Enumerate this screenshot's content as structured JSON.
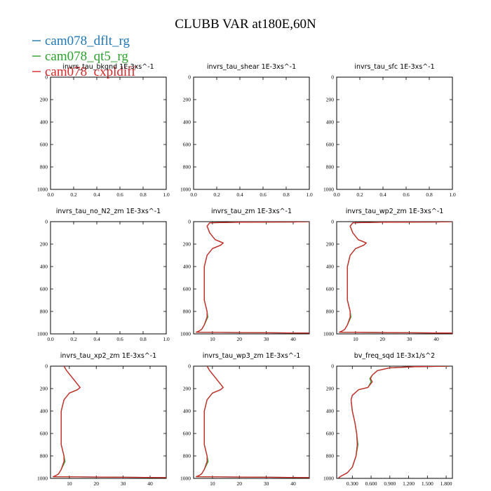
{
  "figure": {
    "title": "CLUBB VAR at180E,60N",
    "legend": [
      {
        "label": "cam078_dflt_rg",
        "color": "#1f77b4"
      },
      {
        "label": "cam078_qt5_rg",
        "color": "#2ca02c"
      },
      {
        "label": "cam078_cxpldiff",
        "color": "#d62728"
      }
    ]
  },
  "chart_data": [
    {
      "type": "line",
      "title": "invrs_tau_bkgnd",
      "units": "1E-3xs^-1",
      "xticks": [
        "0.0",
        "0.2",
        "0.4",
        "0.6",
        "0.8",
        "1.0"
      ],
      "xlim": [
        0,
        1
      ],
      "yticks": [
        "0",
        "200",
        "400",
        "600",
        "800",
        "1000"
      ],
      "ylim": [
        0,
        1000
      ],
      "y_inverted": true,
      "series": []
    },
    {
      "type": "line",
      "title": "invrs_tau_shear",
      "units": "1E-3xs^-1",
      "xticks": [
        "0.0",
        "0.2",
        "0.4",
        "0.6",
        "0.8",
        "1.0"
      ],
      "xlim": [
        0,
        1
      ],
      "yticks": [
        "0",
        "200",
        "400",
        "600",
        "800",
        "1000"
      ],
      "ylim": [
        0,
        1000
      ],
      "y_inverted": true,
      "series": []
    },
    {
      "type": "line",
      "title": "invrs_tau_sfc",
      "units": "1E-3xs^-1",
      "xticks": [
        "0.0",
        "0.2",
        "0.4",
        "0.6",
        "0.8",
        "1.0"
      ],
      "xlim": [
        0,
        1
      ],
      "yticks": [
        "0",
        "200",
        "400",
        "600",
        "800",
        "1000"
      ],
      "ylim": [
        0,
        1000
      ],
      "y_inverted": true,
      "series": []
    },
    {
      "type": "line",
      "title": "invrs_tau_no_N2_zm",
      "units": "1E-3xs^-1",
      "xticks": [
        "0.0",
        "0.2",
        "0.4",
        "0.6",
        "0.8",
        "1.0"
      ],
      "xlim": [
        0,
        1
      ],
      "yticks": [
        "0",
        "200",
        "400",
        "600",
        "800",
        "1000"
      ],
      "ylim": [
        0,
        1000
      ],
      "y_inverted": true,
      "series": []
    },
    {
      "type": "line",
      "title": "invrs_tau_zm",
      "units": "1E-3xs^-1",
      "xticks": [
        "10",
        "20",
        "30",
        "40"
      ],
      "xticks_values": [
        10,
        20,
        30,
        40
      ],
      "xlim": [
        3,
        46
      ],
      "yticks": [
        "0",
        "200",
        "400",
        "600",
        "800",
        "1000"
      ],
      "ylim": [
        0,
        1000
      ],
      "y_inverted": true,
      "series": [
        {
          "color": "#1f77b4",
          "x": [
            46,
            40,
            20,
            9,
            8,
            9,
            11,
            14,
            13,
            10,
            8,
            7,
            7,
            7,
            7,
            8,
            8,
            7,
            6,
            5,
            4,
            30,
            46
          ],
          "y": [
            0,
            3,
            5,
            10,
            40,
            100,
            160,
            190,
            210,
            240,
            300,
            400,
            500,
            600,
            700,
            800,
            850,
            920,
            960,
            975,
            985,
            990,
            993
          ]
        },
        {
          "color": "#2ca02c",
          "x": [
            46,
            40,
            20,
            9,
            8,
            9,
            11,
            14,
            13,
            10,
            8,
            7,
            7,
            7,
            7,
            8,
            8.3,
            7,
            6,
            5,
            4,
            30,
            46
          ],
          "y": [
            0,
            3,
            5,
            10,
            40,
            100,
            160,
            190,
            210,
            240,
            300,
            400,
            500,
            600,
            700,
            800,
            850,
            920,
            960,
            975,
            985,
            990,
            993
          ]
        },
        {
          "color": "#d62728",
          "x": [
            46,
            40,
            20,
            9,
            8,
            9,
            11,
            14,
            13,
            10,
            8,
            7,
            7,
            7,
            7,
            8,
            8,
            7,
            6,
            5,
            4,
            30,
            46
          ],
          "y": [
            0,
            3,
            5,
            10,
            40,
            100,
            160,
            190,
            210,
            240,
            300,
            400,
            500,
            600,
            700,
            800,
            850,
            920,
            960,
            975,
            985,
            990,
            993
          ]
        }
      ]
    },
    {
      "type": "line",
      "title": "invrs_tau_wp2_zm",
      "units": "1E-3xs^-1",
      "xticks": [
        "10",
        "20",
        "30",
        "40"
      ],
      "xticks_values": [
        10,
        20,
        30,
        40
      ],
      "xlim": [
        3,
        46
      ],
      "yticks": [
        "0",
        "200",
        "400",
        "600",
        "800",
        "1000"
      ],
      "ylim": [
        0,
        1000
      ],
      "y_inverted": true,
      "series": [
        {
          "color": "#1f77b4",
          "x": [
            46,
            40,
            20,
            9,
            8,
            9,
            11,
            14,
            13,
            10,
            8,
            7,
            7,
            7,
            7,
            8,
            8,
            7,
            6,
            5,
            4,
            30,
            46
          ],
          "y": [
            0,
            3,
            5,
            10,
            40,
            100,
            160,
            190,
            210,
            240,
            300,
            400,
            500,
            600,
            700,
            800,
            850,
            920,
            960,
            975,
            985,
            990,
            993
          ]
        },
        {
          "color": "#2ca02c",
          "x": [
            46,
            40,
            20,
            9,
            8,
            9,
            11,
            14,
            13,
            10,
            8,
            7,
            7,
            7,
            7,
            8,
            8.3,
            7,
            6,
            5,
            4,
            30,
            46
          ],
          "y": [
            0,
            3,
            5,
            10,
            40,
            100,
            160,
            190,
            210,
            240,
            300,
            400,
            500,
            600,
            700,
            800,
            850,
            920,
            960,
            975,
            985,
            990,
            993
          ]
        },
        {
          "color": "#d62728",
          "x": [
            46,
            40,
            20,
            9,
            8,
            9,
            11,
            14,
            13,
            10,
            8,
            7,
            7,
            7,
            7,
            8,
            8,
            7,
            6,
            5,
            4,
            30,
            46
          ],
          "y": [
            0,
            3,
            5,
            10,
            40,
            100,
            160,
            190,
            210,
            240,
            300,
            400,
            500,
            600,
            700,
            800,
            850,
            920,
            960,
            975,
            985,
            990,
            993
          ]
        }
      ]
    },
    {
      "type": "line",
      "title": "invrs_tau_xp2_zm",
      "units": "1E-3xs^-1",
      "xticks": [
        "10",
        "20",
        "30",
        "40"
      ],
      "xticks_values": [
        10,
        20,
        30,
        40
      ],
      "xlim": [
        3,
        46
      ],
      "yticks": [
        "0",
        "200",
        "400",
        "600",
        "800",
        "1000"
      ],
      "ylim": [
        0,
        1000
      ],
      "y_inverted": true,
      "series": [
        {
          "color": "#1f77b4",
          "x": [
            8,
            9,
            11,
            14,
            13,
            10,
            8,
            7,
            7,
            7,
            7,
            8,
            8,
            7,
            6,
            5,
            4,
            30,
            46
          ],
          "y": [
            0,
            40,
            100,
            190,
            210,
            240,
            300,
            400,
            500,
            600,
            700,
            800,
            850,
            920,
            960,
            975,
            985,
            990,
            993
          ]
        },
        {
          "color": "#2ca02c",
          "x": [
            8,
            9,
            11,
            14,
            13,
            10,
            8,
            7,
            7,
            7,
            7,
            8,
            8.4,
            7,
            6,
            5,
            4,
            30,
            46
          ],
          "y": [
            0,
            40,
            100,
            190,
            210,
            240,
            300,
            400,
            500,
            600,
            700,
            800,
            850,
            920,
            960,
            975,
            985,
            990,
            993
          ]
        },
        {
          "color": "#d62728",
          "x": [
            8,
            9,
            11,
            14,
            13,
            10,
            8,
            7,
            7,
            7,
            7,
            8,
            8,
            7,
            6,
            5,
            4,
            30,
            46
          ],
          "y": [
            0,
            40,
            100,
            190,
            210,
            240,
            300,
            400,
            500,
            600,
            700,
            800,
            850,
            920,
            960,
            975,
            985,
            990,
            993
          ]
        }
      ]
    },
    {
      "type": "line",
      "title": "invrs_tau_wp3_zm",
      "units": "1E-3xs^-1",
      "xticks": [
        "10",
        "20",
        "30",
        "40"
      ],
      "xticks_values": [
        10,
        20,
        30,
        40
      ],
      "xlim": [
        3,
        46
      ],
      "yticks": [
        "0",
        "200",
        "400",
        "600",
        "800",
        "1000"
      ],
      "ylim": [
        0,
        1000
      ],
      "y_inverted": true,
      "series": [
        {
          "color": "#1f77b4",
          "x": [
            8,
            9,
            11,
            14,
            13,
            10,
            8,
            7,
            7,
            7,
            7,
            8,
            8,
            7,
            6,
            5,
            4,
            30,
            46
          ],
          "y": [
            0,
            40,
            100,
            190,
            210,
            240,
            300,
            400,
            500,
            600,
            700,
            800,
            850,
            920,
            960,
            975,
            985,
            990,
            993
          ]
        },
        {
          "color": "#2ca02c",
          "x": [
            8,
            9,
            11,
            14,
            13,
            10,
            8,
            7,
            7,
            7,
            7,
            8,
            8.4,
            7,
            6,
            5,
            4,
            30,
            46
          ],
          "y": [
            0,
            40,
            100,
            190,
            210,
            240,
            300,
            400,
            500,
            600,
            700,
            800,
            850,
            920,
            960,
            975,
            985,
            990,
            993
          ]
        },
        {
          "color": "#d62728",
          "x": [
            8,
            9,
            11,
            14,
            13,
            10,
            8,
            7,
            7,
            7,
            7,
            8,
            8,
            7,
            6,
            5,
            4,
            30,
            46
          ],
          "y": [
            0,
            40,
            100,
            190,
            210,
            240,
            300,
            400,
            500,
            600,
            700,
            800,
            850,
            920,
            960,
            975,
            985,
            990,
            993
          ]
        }
      ]
    },
    {
      "type": "line",
      "title": "bv_freq_sqd",
      "units": "1E-3x1/s^2",
      "xticks": [
        "0.300",
        "0.600",
        "0.900",
        "1.200",
        "1.500",
        "1.800"
      ],
      "xticks_values": [
        0.3,
        0.6,
        0.9,
        1.2,
        1.5,
        1.8
      ],
      "xlim": [
        0.05,
        1.9
      ],
      "yticks": [
        "0",
        "200",
        "400",
        "600",
        "800",
        "1000"
      ],
      "ylim": [
        0,
        1000
      ],
      "y_inverted": true,
      "series": [
        {
          "color": "#1f77b4",
          "x": [
            1.85,
            1.3,
            0.9,
            0.7,
            0.62,
            0.58,
            0.6,
            0.55,
            0.4,
            0.3,
            0.28,
            0.3,
            0.34,
            0.37,
            0.38,
            0.36,
            0.3,
            0.22,
            0.12,
            0.08
          ],
          "y": [
            0,
            5,
            15,
            40,
            80,
            110,
            140,
            190,
            210,
            260,
            300,
            400,
            500,
            600,
            700,
            800,
            900,
            950,
            980,
            995
          ]
        },
        {
          "color": "#2ca02c",
          "x": [
            1.85,
            1.3,
            0.9,
            0.7,
            0.62,
            0.58,
            0.6,
            0.55,
            0.4,
            0.3,
            0.28,
            0.3,
            0.34,
            0.37,
            0.39,
            0.36,
            0.3,
            0.22,
            0.12,
            0.08
          ],
          "y": [
            0,
            5,
            15,
            40,
            80,
            110,
            140,
            190,
            210,
            260,
            300,
            400,
            500,
            600,
            700,
            800,
            900,
            950,
            980,
            995
          ]
        },
        {
          "color": "#d62728",
          "x": [
            1.85,
            1.3,
            0.9,
            0.7,
            0.62,
            0.59,
            0.62,
            0.55,
            0.4,
            0.3,
            0.28,
            0.3,
            0.34,
            0.37,
            0.38,
            0.36,
            0.3,
            0.22,
            0.12,
            0.08
          ],
          "y": [
            0,
            5,
            15,
            40,
            80,
            110,
            140,
            190,
            210,
            260,
            300,
            400,
            500,
            600,
            700,
            800,
            900,
            950,
            980,
            995
          ]
        }
      ]
    }
  ]
}
